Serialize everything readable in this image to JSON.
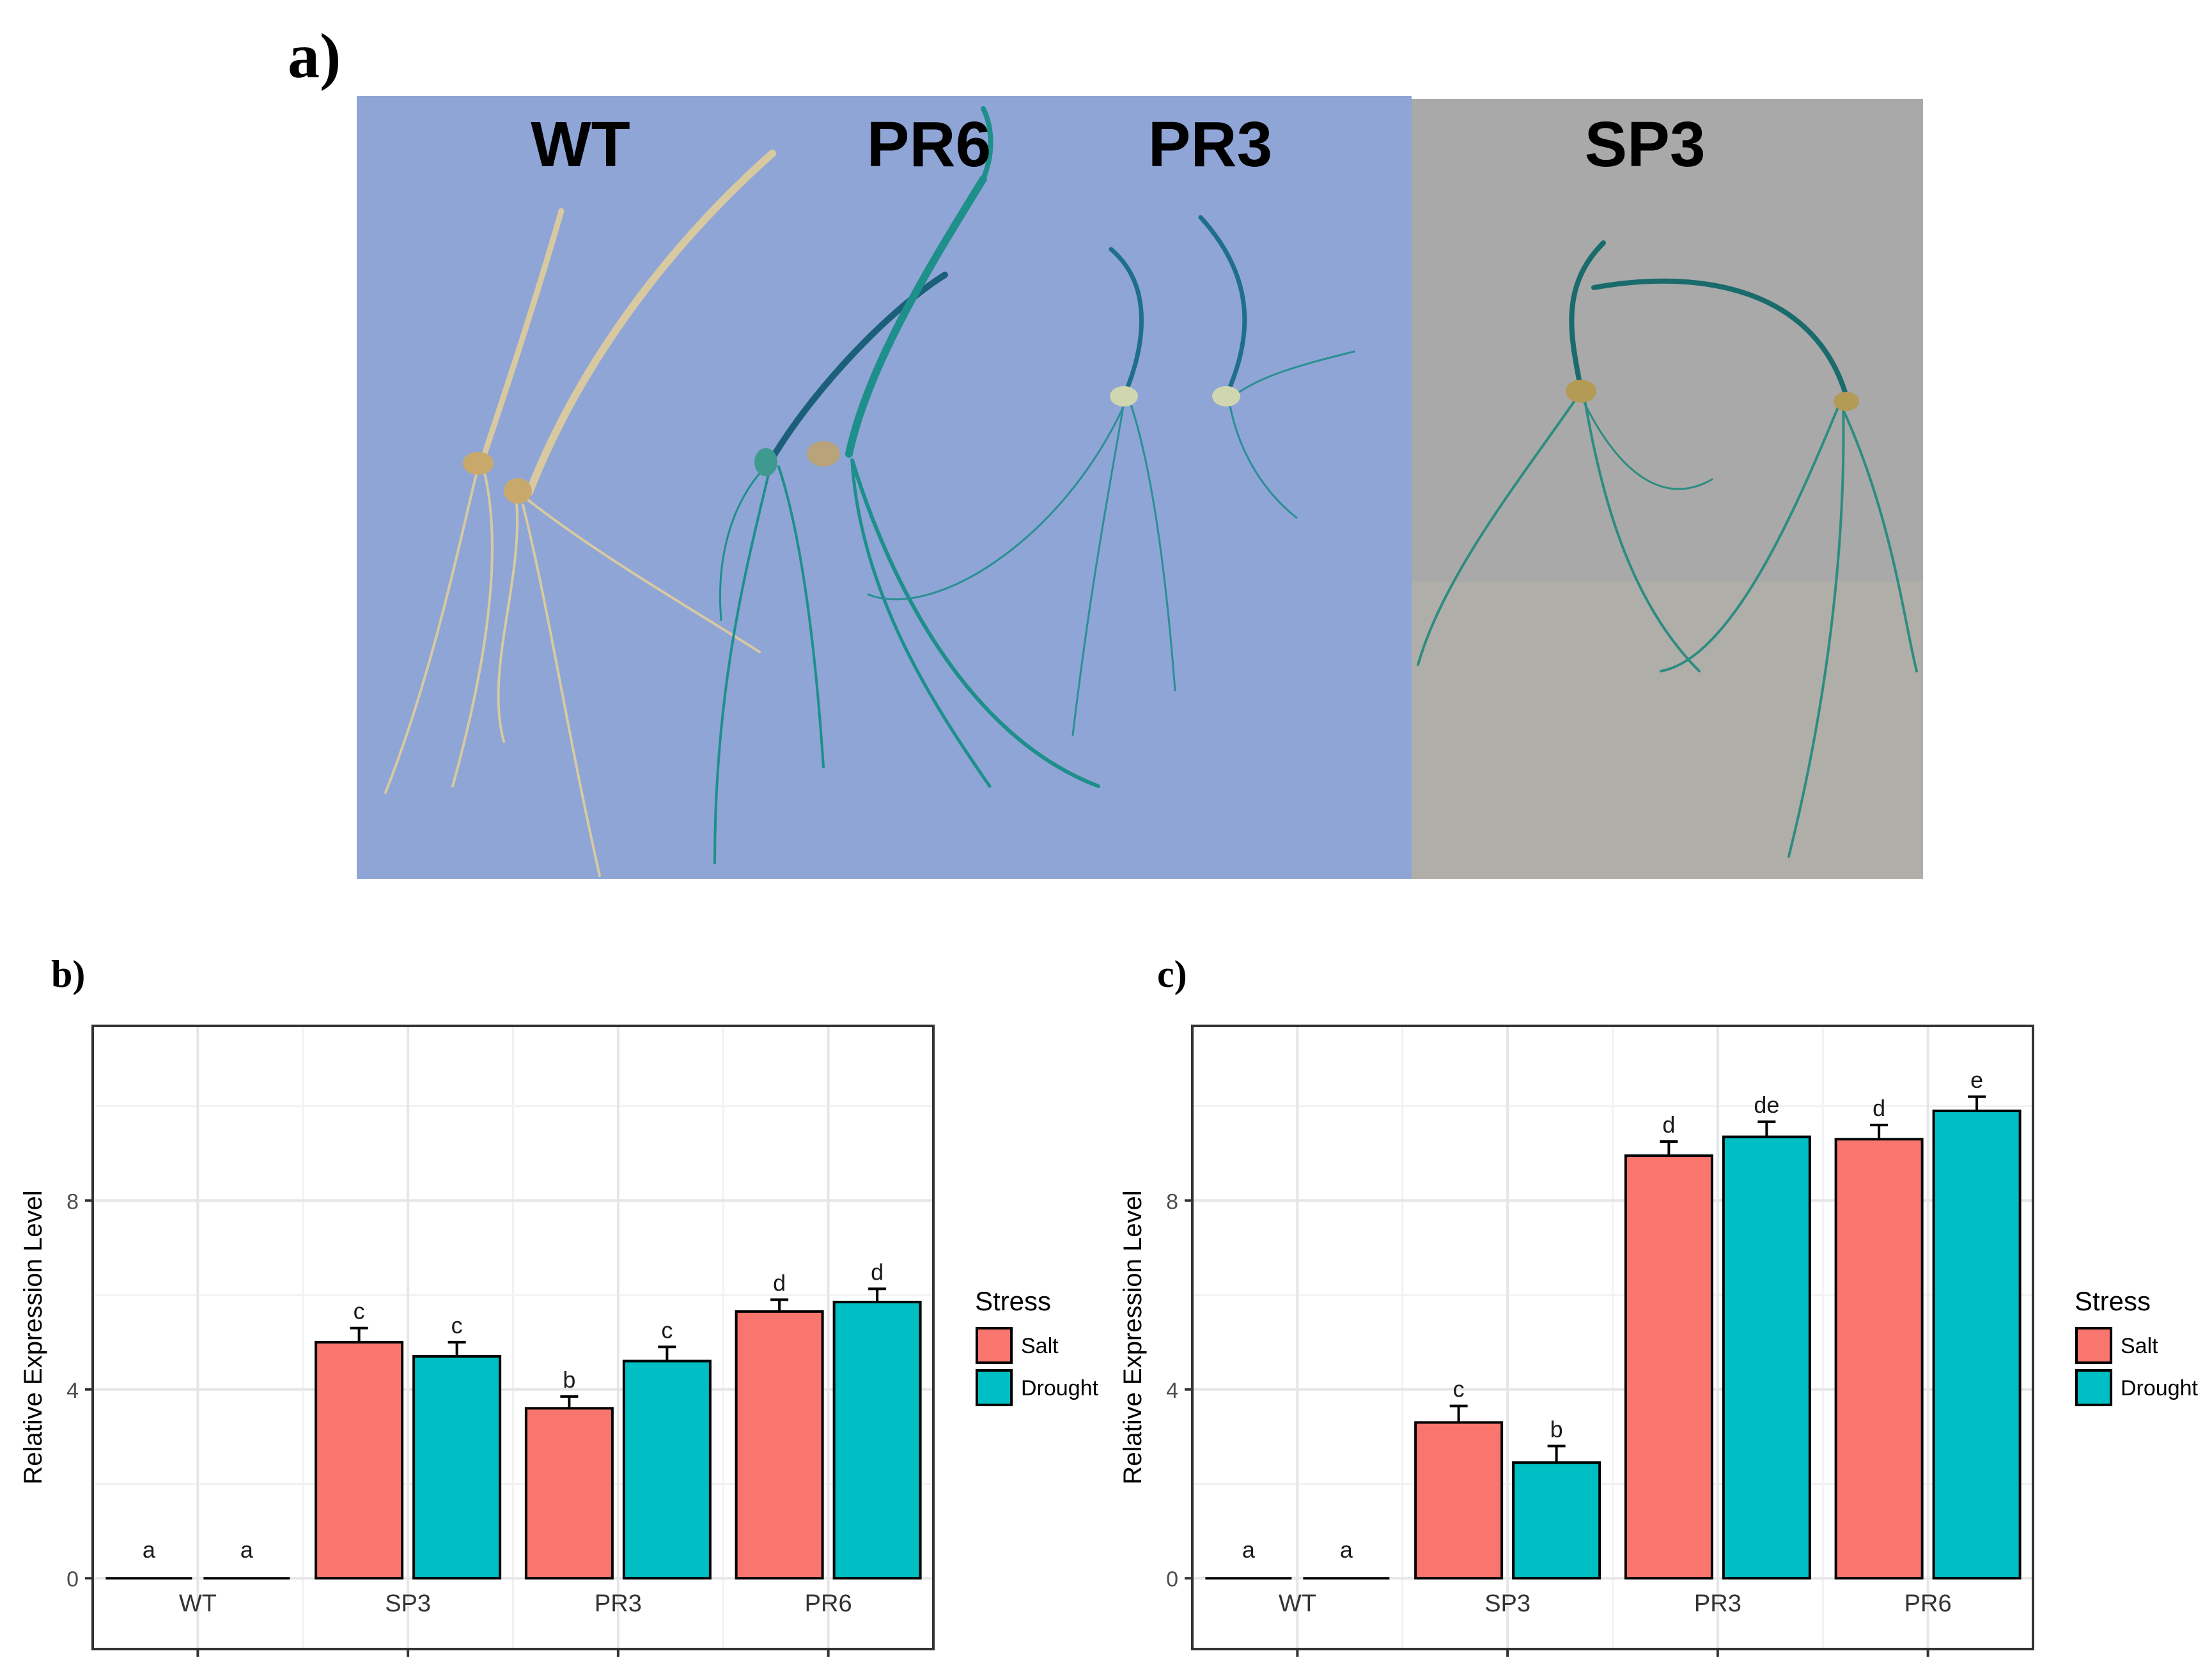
{
  "panels": {
    "a": "a)",
    "b": "b)",
    "c": "c)"
  },
  "photo": {
    "labels": [
      "WT",
      "PR6",
      "PR3",
      "SP3"
    ],
    "colors": {
      "left_background": "#8ea5d6",
      "right_background": "#a9a9a9",
      "stain": "#1e8f8a",
      "wt_seedling": "#d8c9a0"
    }
  },
  "legend": {
    "title": "Stress",
    "entries": [
      "Salt",
      "Drought"
    ]
  },
  "colors": {
    "salt": "#F8766D",
    "drought": "#00BFC4",
    "grid": "#e6e6e6",
    "border": "#333333"
  },
  "chart_data": [
    {
      "type": "bar",
      "panel": "b)",
      "categories": [
        "WT",
        "SP3",
        "PR3",
        "PR6"
      ],
      "series": [
        {
          "name": "Salt",
          "values": [
            0,
            5.0,
            3.6,
            5.65
          ],
          "errors": [
            0,
            0.3,
            0.25,
            0.25
          ],
          "letters": [
            "a",
            "c",
            "b",
            "d"
          ]
        },
        {
          "name": "Drought",
          "values": [
            0,
            4.7,
            4.6,
            5.85
          ],
          "errors": [
            0,
            0.3,
            0.3,
            0.28
          ],
          "letters": [
            "a",
            "c",
            "c",
            "d"
          ]
        }
      ],
      "ylabel": "Relative Expression Level",
      "xlabel": "",
      "yticks": [
        "0",
        "4",
        "8"
      ],
      "ylim": [
        -1.5,
        11.7
      ],
      "legend_title": "Stress"
    },
    {
      "type": "bar",
      "panel": "c)",
      "categories": [
        "WT",
        "SP3",
        "PR3",
        "PR6"
      ],
      "series": [
        {
          "name": "Salt",
          "values": [
            0,
            3.3,
            8.95,
            9.3
          ],
          "errors": [
            0,
            0.35,
            0.3,
            0.3
          ],
          "letters": [
            "a",
            "c",
            "d",
            "d"
          ]
        },
        {
          "name": "Drought",
          "values": [
            0,
            2.45,
            9.35,
            9.9
          ],
          "errors": [
            0,
            0.35,
            0.32,
            0.3
          ],
          "letters": [
            "a",
            "b",
            "de",
            "e"
          ]
        }
      ],
      "ylabel": "Relative Expression Level",
      "xlabel": "",
      "yticks": [
        "0",
        "4",
        "8"
      ],
      "ylim": [
        -1.5,
        11.7
      ],
      "legend_title": "Stress"
    }
  ]
}
